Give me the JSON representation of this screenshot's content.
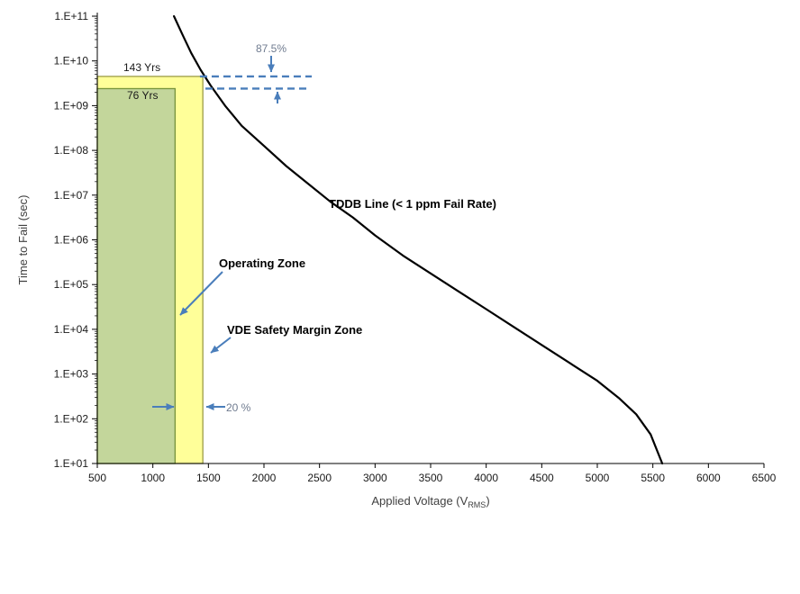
{
  "chart_data": {
    "type": "line",
    "title": "",
    "ylabel": "Time to Fail (sec)",
    "xlabel_main": "Applied Voltage (V",
    "xlabel_sub": "RMS",
    "xlabel_suffix": ")",
    "x_axis": {
      "min": 500,
      "max": 6500,
      "tick_step": 500,
      "tick_labels": [
        "500",
        "1000",
        "1500",
        "2000",
        "2500",
        "3000",
        "3500",
        "4000",
        "4500",
        "5000",
        "5500",
        "6000",
        "6500"
      ]
    },
    "y_axis": {
      "scale": "log",
      "min_exp": 1,
      "max_exp": 11,
      "tick_labels": [
        "1.E+11",
        "1.E+10",
        "1.E+09",
        "1.E+08",
        "1.E+07",
        "1.E+06",
        "1.E+05",
        "1.E+04",
        "1.E+03",
        "1.E+02",
        "1.E+01"
      ]
    },
    "series": [
      {
        "name": "TDDB Line (< 1 ppm Fail Rate)",
        "color": "#000000",
        "points_v_logt": [
          [
            1190,
            11.0
          ],
          [
            1265,
            10.6
          ],
          [
            1345,
            10.18
          ],
          [
            1430,
            9.8
          ],
          [
            1520,
            9.45
          ],
          [
            1650,
            9.0
          ],
          [
            1800,
            8.55
          ],
          [
            2000,
            8.1
          ],
          [
            2200,
            7.65
          ],
          [
            2400,
            7.25
          ],
          [
            2600,
            6.85
          ],
          [
            2800,
            6.5
          ],
          [
            3000,
            6.1
          ],
          [
            3250,
            5.65
          ],
          [
            3500,
            5.25
          ],
          [
            3750,
            4.85
          ],
          [
            4000,
            4.45
          ],
          [
            4250,
            4.05
          ],
          [
            4500,
            3.65
          ],
          [
            4750,
            3.25
          ],
          [
            5000,
            2.85
          ],
          [
            5200,
            2.45
          ],
          [
            5350,
            2.1
          ],
          [
            5480,
            1.65
          ],
          [
            5585,
            1.0
          ]
        ]
      }
    ],
    "zones": [
      {
        "name": "VDE Safety Margin Zone",
        "years_label": "143 Yrs",
        "x_range": [
          500,
          1450
        ],
        "top_exp": 9.654,
        "fill": "#ffff99",
        "stroke": "#9c9c46"
      },
      {
        "name": "Operating Zone",
        "years_label": "76 Yrs",
        "x_range": [
          500,
          1200
        ],
        "top_exp": 9.381,
        "fill": "#c3d69b",
        "stroke": "#77933c"
      }
    ],
    "dashed_lines": [
      {
        "exp": 9.654,
        "x_range": [
          1424,
          2430
        ]
      },
      {
        "exp": 9.381,
        "x_range": [
          1473,
          2389
        ]
      }
    ],
    "annotations": {
      "derating_label": "87.5%",
      "margin_width_label": "20 %",
      "tddb_line_label": "TDDB Line (< 1 ppm Fail Rate)",
      "operating_zone_label": "Operating  Zone",
      "vde_zone_label": "VDE Safety Margin Zone"
    },
    "colors": {
      "curve": "#000000",
      "annotation_blue": "#4a7ebb",
      "annotation_gray": "#6f7b8f",
      "axis_text": "#404040",
      "tick_text": "#1a1a1a"
    }
  }
}
